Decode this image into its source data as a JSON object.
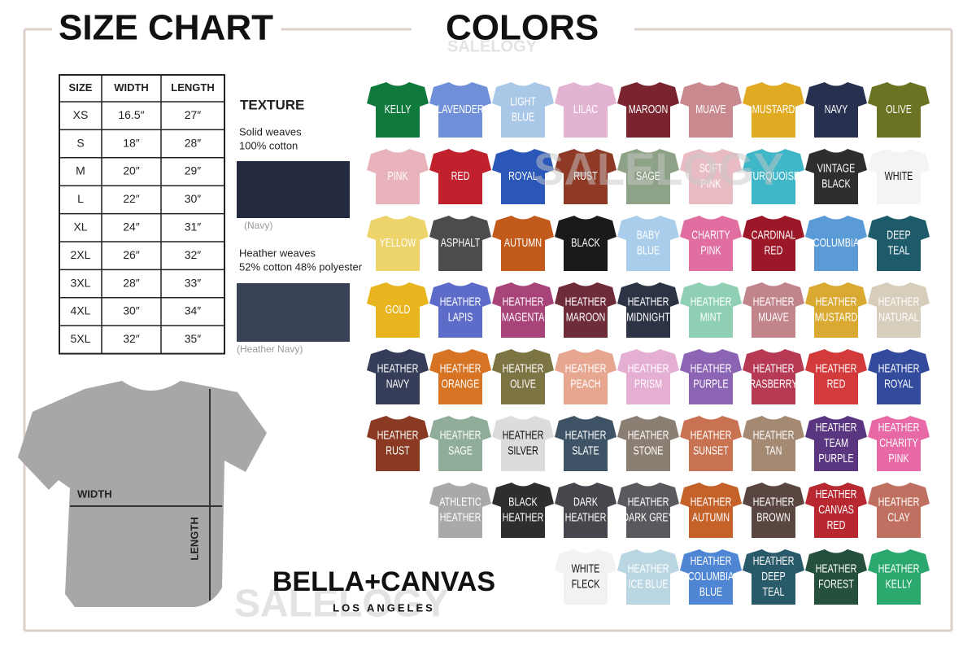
{
  "size_chart": {
    "title": "SIZE CHART",
    "table": {
      "header": [
        "SIZE",
        "WIDTH",
        "LENGTH"
      ],
      "rows": [
        [
          "XS",
          "16.5″",
          "27″"
        ],
        [
          "S",
          "18″",
          "28″"
        ],
        [
          "M",
          "20″",
          "29″"
        ],
        [
          "L",
          "22″",
          "30″"
        ],
        [
          "XL",
          "24″",
          "31″"
        ],
        [
          "2XL",
          "26″",
          "32″"
        ],
        [
          "3XL",
          "28″",
          "33″"
        ],
        [
          "4XL",
          "30″",
          "34″"
        ],
        [
          "5XL",
          "32″",
          "35″"
        ]
      ]
    },
    "texture": {
      "title": "TEXTURE",
      "solid": {
        "lines": [
          "Solid weaves",
          "100% cotton"
        ],
        "caption": "(Navy)"
      },
      "heather": {
        "lines": [
          "Heather weaves",
          "52% cotton 48% polyester"
        ],
        "caption": "(Heather Navy)"
      }
    },
    "measure": {
      "width": "WIDTH",
      "length": "LENGTH"
    }
  },
  "colors": {
    "title": "COLORS",
    "rows": [
      [
        {
          "label": [
            "KELLY"
          ],
          "color": "#0f7a3c"
        },
        {
          "label": [
            "LAVENDER"
          ],
          "color": "#6f8fd8"
        },
        {
          "label": [
            "LIGHT",
            "BLUE"
          ],
          "color": "#a9c8e8"
        },
        {
          "label": [
            "LILAC"
          ],
          "color": "#e3b4d2"
        },
        {
          "label": [
            "MAROON"
          ],
          "color": "#7a2430"
        },
        {
          "label": [
            "MUAVE"
          ],
          "color": "#c98a8f"
        },
        {
          "label": [
            "MUSTARD"
          ],
          "color": "#e0ab22"
        },
        {
          "label": [
            "NAVY"
          ],
          "color": "#27304f"
        },
        {
          "label": [
            "OLIVE"
          ],
          "color": "#6b7322"
        }
      ],
      [
        {
          "label": [
            "PINK"
          ],
          "color": "#e8b3bb"
        },
        {
          "label": [
            "RED"
          ],
          "color": "#c1202d"
        },
        {
          "label": [
            "ROYAL"
          ],
          "color": "#2a57b8"
        },
        {
          "label": [
            "RUST"
          ],
          "color": "#8f3a26"
        },
        {
          "label": [
            "SAGE"
          ],
          "color": "#8ea287"
        },
        {
          "label": [
            "SOFT",
            "PINK"
          ],
          "color": "#e9bcc4"
        },
        {
          "label": [
            "TURQUOISE"
          ],
          "color": "#3fb7c8"
        },
        {
          "label": [
            "VINTAGE",
            "BLACK"
          ],
          "color": "#2e2e2e"
        },
        {
          "label": [
            "WHITE"
          ],
          "color": "#f4f4f4"
        }
      ],
      [
        {
          "label": [
            "YELLOW"
          ],
          "color": "#ecd36a"
        },
        {
          "label": [
            "ASPHALT"
          ],
          "color": "#4c4c4e"
        },
        {
          "label": [
            "AUTUMN"
          ],
          "color": "#c25a1c"
        },
        {
          "label": [
            "BLACK"
          ],
          "color": "#1a1a1a"
        },
        {
          "label": [
            "BABY",
            "BLUE"
          ],
          "color": "#a9cdea"
        },
        {
          "label": [
            "CHARITY",
            "PINK"
          ],
          "color": "#e06ea0"
        },
        {
          "label": [
            "CARDINAL",
            "RED"
          ],
          "color": "#9c1728"
        },
        {
          "label": [
            "COLUMBIA"
          ],
          "color": "#5a9ad6"
        },
        {
          "label": [
            "DEEP",
            "TEAL"
          ],
          "color": "#1d5b6b"
        }
      ],
      [
        {
          "label": [
            "GOLD"
          ],
          "color": "#e8b51e"
        },
        {
          "label": [
            "HEATHER",
            "LAPIS"
          ],
          "color": "#5c6cc8"
        },
        {
          "label": [
            "HEATHER",
            "MAGENTA"
          ],
          "color": "#a8447a"
        },
        {
          "label": [
            "HEATHER",
            "MAROON"
          ],
          "color": "#6e2c3a"
        },
        {
          "label": [
            "HEATHER",
            "MIDNIGHT"
          ],
          "color": "#2c3344"
        },
        {
          "label": [
            "HEATHER",
            "MINT"
          ],
          "color": "#8fd0b4"
        },
        {
          "label": [
            "HEATHER",
            "MUAVE"
          ],
          "color": "#c0848a"
        },
        {
          "label": [
            "HEATHER",
            "MUSTARD"
          ],
          "color": "#d9a932"
        },
        {
          "label": [
            "HEATHER",
            "NATURAL"
          ],
          "color": "#d6cdbb"
        }
      ],
      [
        {
          "label": [
            "HEATHER",
            "NAVY"
          ],
          "color": "#363d58"
        },
        {
          "label": [
            "HEATHER",
            "ORANGE"
          ],
          "color": "#d67424"
        },
        {
          "label": [
            "HEATHER",
            "OLIVE"
          ],
          "color": "#7d7444"
        },
        {
          "label": [
            "HEATHER",
            "PEACH"
          ],
          "color": "#e7a690"
        },
        {
          "label": [
            "HEATHER",
            "PRISM"
          ],
          "color": "#e5aed3"
        },
        {
          "label": [
            "HEATHER",
            "PURPLE"
          ],
          "color": "#8b64b4"
        },
        {
          "label": [
            "HEATHER",
            "RASBERRY"
          ],
          "color": "#b73a55"
        },
        {
          "label": [
            "HEATHER",
            "RED"
          ],
          "color": "#d23a3c"
        },
        {
          "label": [
            "HEATHER",
            "ROYAL"
          ],
          "color": "#324b9c"
        }
      ],
      [
        {
          "label": [
            "HEATHER",
            "RUST"
          ],
          "color": "#8a3a22"
        },
        {
          "label": [
            "HEATHER",
            "SAGE"
          ],
          "color": "#8fad98"
        },
        {
          "label": [
            "HEATHER",
            "SILVER"
          ],
          "color": "#dcdcdc"
        },
        {
          "label": [
            "HEATHER",
            "SLATE"
          ],
          "color": "#3f5366"
        },
        {
          "label": [
            "HEATHER",
            "STONE"
          ],
          "color": "#8a7f72"
        },
        {
          "label": [
            "HEATHER",
            "SUNSET"
          ],
          "color": "#c97252"
        },
        {
          "label": [
            "HEATHER",
            "TAN"
          ],
          "color": "#a48a72"
        },
        {
          "label": [
            "HEATHER",
            "TEAM",
            "PURPLE"
          ],
          "color": "#5a3680"
        },
        {
          "label": [
            "HEATHER",
            "CHARITY",
            "PINK"
          ],
          "color": "#e76aa6"
        }
      ],
      [
        {
          "label": [
            "ATHLETIC",
            "HEATHER"
          ],
          "color": "#a9a9a9"
        },
        {
          "label": [
            "BLACK",
            "HEATHER"
          ],
          "color": "#2e2e2e"
        },
        {
          "label": [
            "DARK",
            "HEATHER"
          ],
          "color": "#45474c"
        },
        {
          "label": [
            "HEATHER",
            "DARK GREY"
          ],
          "color": "#5a5a5e"
        },
        {
          "label": [
            "HEATHER",
            "AUTUMN"
          ],
          "color": "#c4622a"
        },
        {
          "label": [
            "HEATHER",
            "BROWN"
          ],
          "color": "#5a4640"
        },
        {
          "label": [
            "HEATHER",
            "CANVAS",
            "RED"
          ],
          "color": "#b82830"
        },
        {
          "label": [
            "HEATHER",
            "CLAY"
          ],
          "color": "#c07060"
        }
      ],
      [
        {
          "label": [
            "WHITE",
            "FLECK"
          ],
          "color": "#f2f2f2"
        },
        {
          "label": [
            "HEATHER",
            "ICE BLUE"
          ],
          "color": "#b9d6e2"
        },
        {
          "label": [
            "HEATHER",
            "COLUMBIA",
            "BLUE"
          ],
          "color": "#4f86d4"
        },
        {
          "label": [
            "HEATHER",
            "DEEP",
            "TEAL"
          ],
          "color": "#285a6a"
        },
        {
          "label": [
            "HEATHER",
            "FOREST"
          ],
          "color": "#25503e"
        },
        {
          "label": [
            "HEATHER",
            "KELLY"
          ],
          "color": "#2aa86e"
        }
      ]
    ]
  },
  "brand": {
    "name": "BELLA+CANVAS",
    "location": "LOS ANGELES"
  },
  "watermark": "SALELOGY"
}
